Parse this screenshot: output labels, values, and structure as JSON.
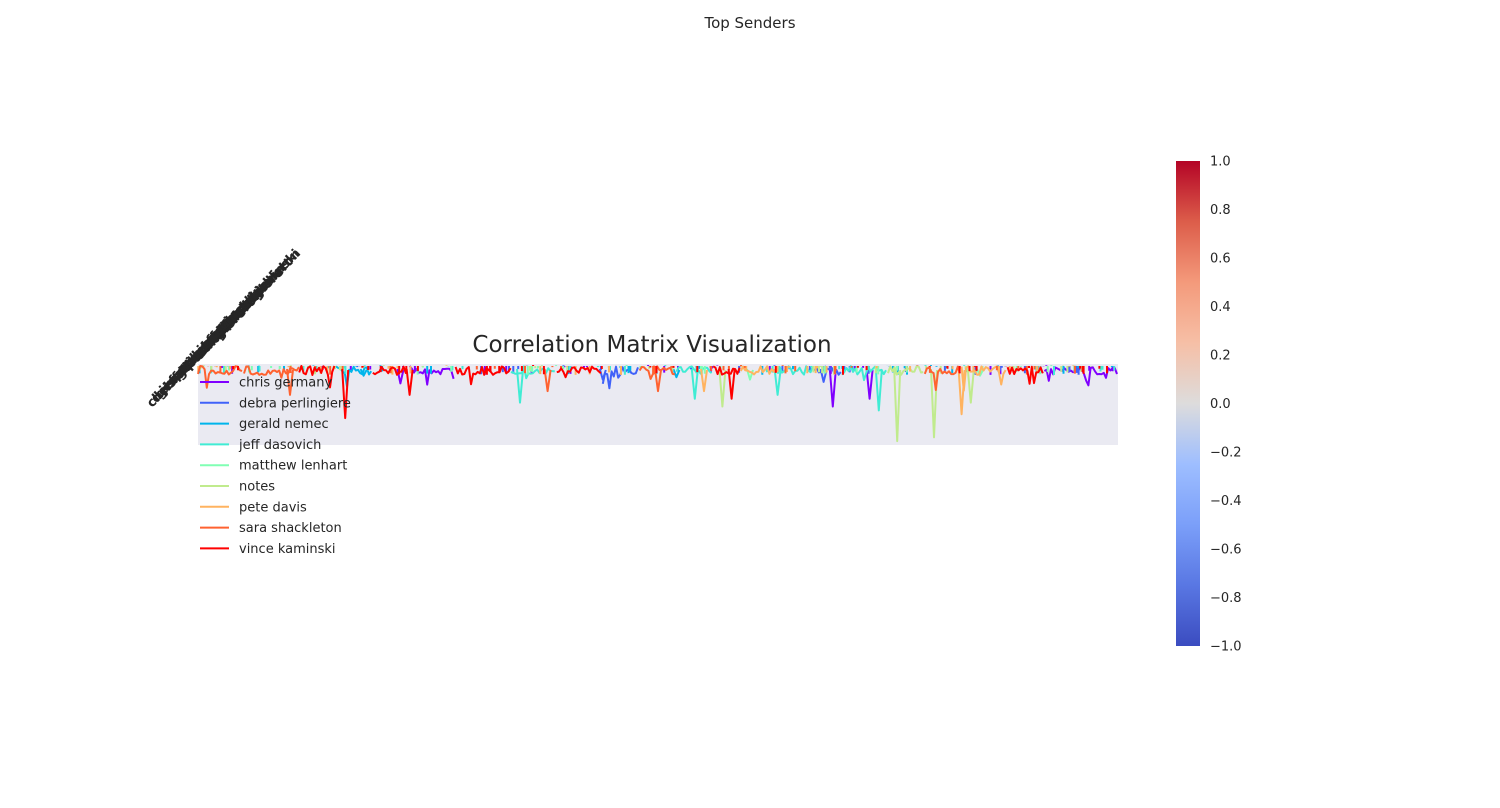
{
  "figure": {
    "suptitle": "Top Senders"
  },
  "chart_data": [
    {
      "type": "line",
      "title": "Correlation Matrix Visualization",
      "xlabel": "",
      "ylabel": "",
      "grid": false,
      "legend_position": "upper-left",
      "background_color": "#EAEAF2",
      "series": [
        {
          "name": "chris germany",
          "color": "#8000ff",
          "dips": [
            [
              0.22,
              0.2
            ],
            [
              0.69,
              0.5
            ],
            [
              0.73,
              0.4
            ]
          ]
        },
        {
          "name": "debra perlingiere",
          "color": "#4062f9",
          "dips": [
            [
              0.44,
              0.15
            ],
            [
              0.68,
              0.18
            ]
          ]
        },
        {
          "name": "gerald nemec",
          "color": "#00b5eb",
          "dips": [
            [
              0.18,
              0.1
            ],
            [
              0.52,
              0.12
            ]
          ]
        },
        {
          "name": "jeff dasovich",
          "color": "#40ecd4",
          "dips": [
            [
              0.35,
              0.45
            ],
            [
              0.54,
              0.4
            ],
            [
              0.63,
              0.35
            ],
            [
              0.74,
              0.55
            ]
          ]
        },
        {
          "name": "matthew lenhart",
          "color": "#80ffb4",
          "dips": [
            [
              0.6,
              0.15
            ],
            [
              0.85,
              0.1
            ]
          ]
        },
        {
          "name": "notes",
          "color": "#c0eb8d",
          "dips": [
            [
              0.57,
              0.5
            ],
            [
              0.76,
              0.95
            ],
            [
              0.8,
              0.9
            ],
            [
              0.84,
              0.45
            ]
          ]
        },
        {
          "name": "pete davis",
          "color": "#ffb360",
          "dips": [
            [
              0.55,
              0.3
            ],
            [
              0.83,
              0.6
            ]
          ]
        },
        {
          "name": "sara shackleton",
          "color": "#ff6230",
          "dips": [
            [
              0.1,
              0.35
            ],
            [
              0.38,
              0.3
            ],
            [
              0.5,
              0.3
            ]
          ]
        },
        {
          "name": "vince kaminski",
          "color": "#ff0000",
          "dips": [
            [
              0.16,
              0.65
            ],
            [
              0.23,
              0.35
            ],
            [
              0.58,
              0.4
            ]
          ]
        }
      ]
    },
    {
      "type": "heatmap",
      "title": "",
      "colormap": "coolwarm",
      "colorbar": {
        "range": [
          -1.0,
          1.0
        ],
        "ticks": [
          "1.0",
          "0.8",
          "0.6",
          "0.4",
          "0.2",
          "0.0",
          "−0.2",
          "−0.4",
          "−0.6",
          "−0.8",
          "−1.0"
        ],
        "tick_values": [
          1.0,
          0.8,
          0.6,
          0.4,
          0.2,
          0.0,
          -0.2,
          -0.4,
          -0.6,
          -0.8,
          -1.0
        ]
      },
      "x_tick_labels_overlapping": "unreadable rotated sender names"
    }
  ]
}
